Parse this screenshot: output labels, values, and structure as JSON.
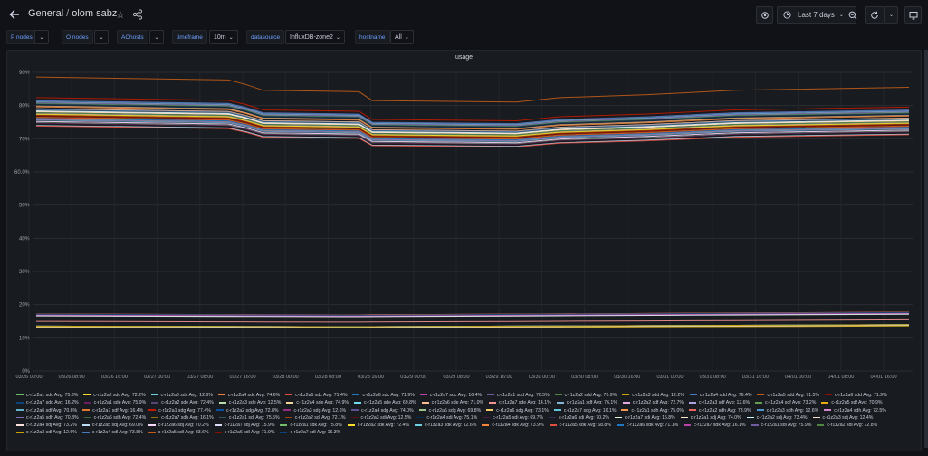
{
  "header": {
    "folder": "General",
    "separator": "/",
    "title": "olom sabz",
    "time_range": "Last 7 days"
  },
  "variables": [
    {
      "label": "P nodes",
      "value": ""
    },
    {
      "label": "O nodes",
      "value": ""
    },
    {
      "label": "AChosts",
      "value": ""
    },
    {
      "label": "timeframe",
      "value": "10m"
    },
    {
      "label": "datasource",
      "value": "InfluxDB-zone2"
    },
    {
      "label": "hostname",
      "value": "All"
    }
  ],
  "panel": {
    "title": "usage"
  },
  "chart_data": {
    "type": "line",
    "title": "usage",
    "y_ticks": [
      "90%",
      "80%",
      "70%",
      "60.0%",
      "50%",
      "40%",
      "30%",
      "20%",
      "10%",
      "0%"
    ],
    "x_ticks": [
      "03/26 00:00",
      "03/26 08:00",
      "03/26 16:00",
      "03/27 00:00",
      "03/27 08:00",
      "03/27 16:00",
      "03/28 00:00",
      "03/28 08:00",
      "03/28 16:00",
      "03/29 00:00",
      "03/29 08:00",
      "03/29 16:00",
      "03/30 00:00",
      "03/30 08:00",
      "03/30 16:00",
      "03/31 00:00",
      "03/31 08:00",
      "03/31 16:00",
      "04/01 00:00",
      "04/01 08:00",
      "04/01 16:00"
    ],
    "ylim": [
      0,
      90
    ],
    "grid": true,
    "legend": "bottom",
    "series": [
      {
        "name": "c-r1z2a1 sdc",
        "avg": "Avg: 75.8%",
        "color": "#73bf69"
      },
      {
        "name": "c-r1z2a2 sdc",
        "avg": "Avg: 72.2%",
        "color": "#fade2a"
      },
      {
        "name": "c-r1z2a3 sdc",
        "avg": "Avg: 12.6%",
        "color": "#6ed0e0"
      },
      {
        "name": "c-r1z2a4 sdc",
        "avg": "Avg: 74.6%",
        "color": "#ef843c"
      },
      {
        "name": "c-r1z2a5 sdc",
        "avg": "Avg: 71.4%",
        "color": "#e24d42"
      },
      {
        "name": "c-r1z2a6 sdc",
        "avg": "Avg: 71.9%",
        "color": "#1f78c1"
      },
      {
        "name": "c-r1z2a7 sdc",
        "avg": "Avg: 16.4%",
        "color": "#ba43a9"
      },
      {
        "name": "c-r1z2a1 sdd",
        "avg": "Avg: 76.5%",
        "color": "#705da0"
      },
      {
        "name": "c-r1z2a2 sdd",
        "avg": "Avg: 70.9%",
        "color": "#508642"
      },
      {
        "name": "c-r1z2a3 sdd",
        "avg": "Avg: 12.2%",
        "color": "#cca300"
      },
      {
        "name": "c-r1z2a4 sdd",
        "avg": "Avg: 76.4%",
        "color": "#447ebc"
      },
      {
        "name": "c-r1z2a5 sdd",
        "avg": "Avg: 71.5%",
        "color": "#c15c17"
      },
      {
        "name": "c-r1z2a6 sdd",
        "avg": "Avg: 71.9%",
        "color": "#890f02"
      },
      {
        "name": "c-r1z2a7 sdd",
        "avg": "Avg: 16.2%",
        "color": "#0a437c"
      },
      {
        "name": "c-r1z2a1 sde",
        "avg": "Avg: 75.9%",
        "color": "#6d1f62"
      },
      {
        "name": "c-r1z2a2 sde",
        "avg": "Avg: 72.4%",
        "color": "#584477"
      },
      {
        "name": "c-r1z2a3 sde",
        "avg": "Avg: 12.5%",
        "color": "#b7dbab"
      },
      {
        "name": "c-r1z2a4 sde",
        "avg": "Avg: 74.9%",
        "color": "#f4d598"
      },
      {
        "name": "c-r1z2a5 sde",
        "avg": "Avg: 69.8%",
        "color": "#70dbed"
      },
      {
        "name": "c-r1z2a6 sde",
        "avg": "Avg: 71.0%",
        "color": "#f9ba8f"
      },
      {
        "name": "c-r1z2a7 sde",
        "avg": "Avg: 14.1%",
        "color": "#f29191"
      },
      {
        "name": "c-r1z2a1 sdf",
        "avg": "Avg: 76.1%",
        "color": "#82b5d8"
      },
      {
        "name": "c-r1z2a2 sdf",
        "avg": "Avg: 72.7%",
        "color": "#e5a8e2"
      },
      {
        "name": "c-r1z2a3 sdf",
        "avg": "Avg: 12.6%",
        "color": "#aea2e0"
      },
      {
        "name": "c-r1z2a4 sdf",
        "avg": "Avg: 73.2%",
        "color": "#629e51"
      },
      {
        "name": "c-r1z2a5 sdf",
        "avg": "Avg: 70.9%",
        "color": "#e5ac0e"
      },
      {
        "name": "c-r1z2a6 sdf",
        "avg": "Avg: 70.6%",
        "color": "#64b0c8"
      },
      {
        "name": "c-r1z2a7 sdf",
        "avg": "Avg: 16.4%",
        "color": "#e0752d"
      },
      {
        "name": "c-r1z2a1 sdg",
        "avg": "Avg: 77.4%",
        "color": "#bf1b00"
      },
      {
        "name": "c-r1z2a2 sdg",
        "avg": "Avg: 72.8%",
        "color": "#0a50a1"
      },
      {
        "name": "c-r1z2a3 sdg",
        "avg": "Avg: 12.6%",
        "color": "#962d82"
      },
      {
        "name": "c-r1z2a4 sdg",
        "avg": "Avg: 74.0%",
        "color": "#614d93"
      },
      {
        "name": "c-r1z2a5 sdg",
        "avg": "Avg: 69.8%",
        "color": "#9ac48a"
      },
      {
        "name": "c-r1z2a6 sdg",
        "avg": "Avg: 73.1%",
        "color": "#f2c96d"
      },
      {
        "name": "c-r1z2a7 sdg",
        "avg": "Avg: 16.1%",
        "color": "#65c5db"
      },
      {
        "name": "c-r1z2a1 sdh",
        "avg": "Avg: 75.0%",
        "color": "#f9934e"
      },
      {
        "name": "c-r1z2a2 sdh",
        "avg": "Avg: 73.9%",
        "color": "#ea6460"
      },
      {
        "name": "c-r1z2a3 sdh",
        "avg": "Avg: 12.6%",
        "color": "#5195ce"
      },
      {
        "name": "c-r1z2a4 sdh",
        "avg": "Avg: 72.5%",
        "color": "#d683ce"
      },
      {
        "name": "c-r1z2a5 sdh",
        "avg": "Avg: 70.8%",
        "color": "#806eb7"
      },
      {
        "name": "c-r1z2a6 sdh",
        "avg": "Avg: 72.4%",
        "color": "#3f6833"
      },
      {
        "name": "c-r1z2a7 sdh",
        "avg": "Avg: 16.1%",
        "color": "#967302"
      },
      {
        "name": "c-r1z2a1 sdi",
        "avg": "Avg: 75.5%",
        "color": "#2f575e"
      },
      {
        "name": "c-r1z2a2 sdi",
        "avg": "Avg: 72.1%",
        "color": "#99440a"
      },
      {
        "name": "c-r1z2a3 sdi",
        "avg": "Avg: 12.5%",
        "color": "#58140c"
      },
      {
        "name": "c-r1z2a4 sdi",
        "avg": "Avg: 75.1%",
        "color": "#052b51"
      },
      {
        "name": "c-r1z2a5 sdi",
        "avg": "Avg: 69.7%",
        "color": "#511749"
      },
      {
        "name": "c-r1z2a6 sdi",
        "avg": "Avg: 70.2%",
        "color": "#3f2b5b"
      },
      {
        "name": "c-r1z2a7 sdi",
        "avg": "Avg: 15.8%",
        "color": "#e0f9d7"
      },
      {
        "name": "c-r1z2a1 sdj",
        "avg": "Avg: 74.0%",
        "color": "#fceaca"
      },
      {
        "name": "c-r1z2a2 sdj",
        "avg": "Avg: 73.4%",
        "color": "#cffaff"
      },
      {
        "name": "c-r1z2a3 sdj",
        "avg": "Avg: 12.4%",
        "color": "#f9e2d2"
      },
      {
        "name": "c-r1z2a4 sdj",
        "avg": "Avg: 73.2%",
        "color": "#fce2de"
      },
      {
        "name": "c-r1z2a5 sdj",
        "avg": "Avg: 69.0%",
        "color": "#badff4"
      },
      {
        "name": "c-r1z2a6 sdj",
        "avg": "Avg: 70.2%",
        "color": "#f9d9f9"
      },
      {
        "name": "c-r1z2a7 sdj",
        "avg": "Avg: 15.9%",
        "color": "#dedaf7"
      },
      {
        "name": "c-r1z2a1 sdk",
        "avg": "Avg: 75.8%",
        "color": "#73bf69"
      },
      {
        "name": "c-r1z2a2 sdk",
        "avg": "Avg: 72.4%",
        "color": "#fade2a"
      },
      {
        "name": "c-r1z2a3 sdk",
        "avg": "Avg: 12.6%",
        "color": "#6ed0e0"
      },
      {
        "name": "c-r1z2a4 sdk",
        "avg": "Avg: 73.9%",
        "color": "#ef843c"
      },
      {
        "name": "c-r1z2a5 sdk",
        "avg": "Avg: 68.8%",
        "color": "#e24d42"
      },
      {
        "name": "c-r1z2a6 sdk",
        "avg": "Avg: 71.1%",
        "color": "#1f78c1"
      },
      {
        "name": "c-r1z2a7 sdk",
        "avg": "Avg: 16.1%",
        "color": "#ba43a9"
      },
      {
        "name": "c-r1z2a1 sdl",
        "avg": "Avg: 75.9%",
        "color": "#705da0"
      },
      {
        "name": "c-r1z2a2 sdl",
        "avg": "Avg: 72.8%",
        "color": "#508642"
      },
      {
        "name": "c-r1z2a3 sdl",
        "avg": "Avg: 12.6%",
        "color": "#cca300"
      },
      {
        "name": "c-r1z2a4 sdl",
        "avg": "Avg: 73.8%",
        "color": "#447ebc"
      },
      {
        "name": "c-r1z2a5 sdl",
        "avg": "Avg: 83.6%",
        "color": "#c15c17"
      },
      {
        "name": "c-r1z2a6 sdl",
        "avg": "Avg: 71.9%",
        "color": "#890f02"
      },
      {
        "name": "c-r1z2a7 sdl",
        "avg": "Avg: 16.3%",
        "color": "#0a437c"
      }
    ]
  }
}
